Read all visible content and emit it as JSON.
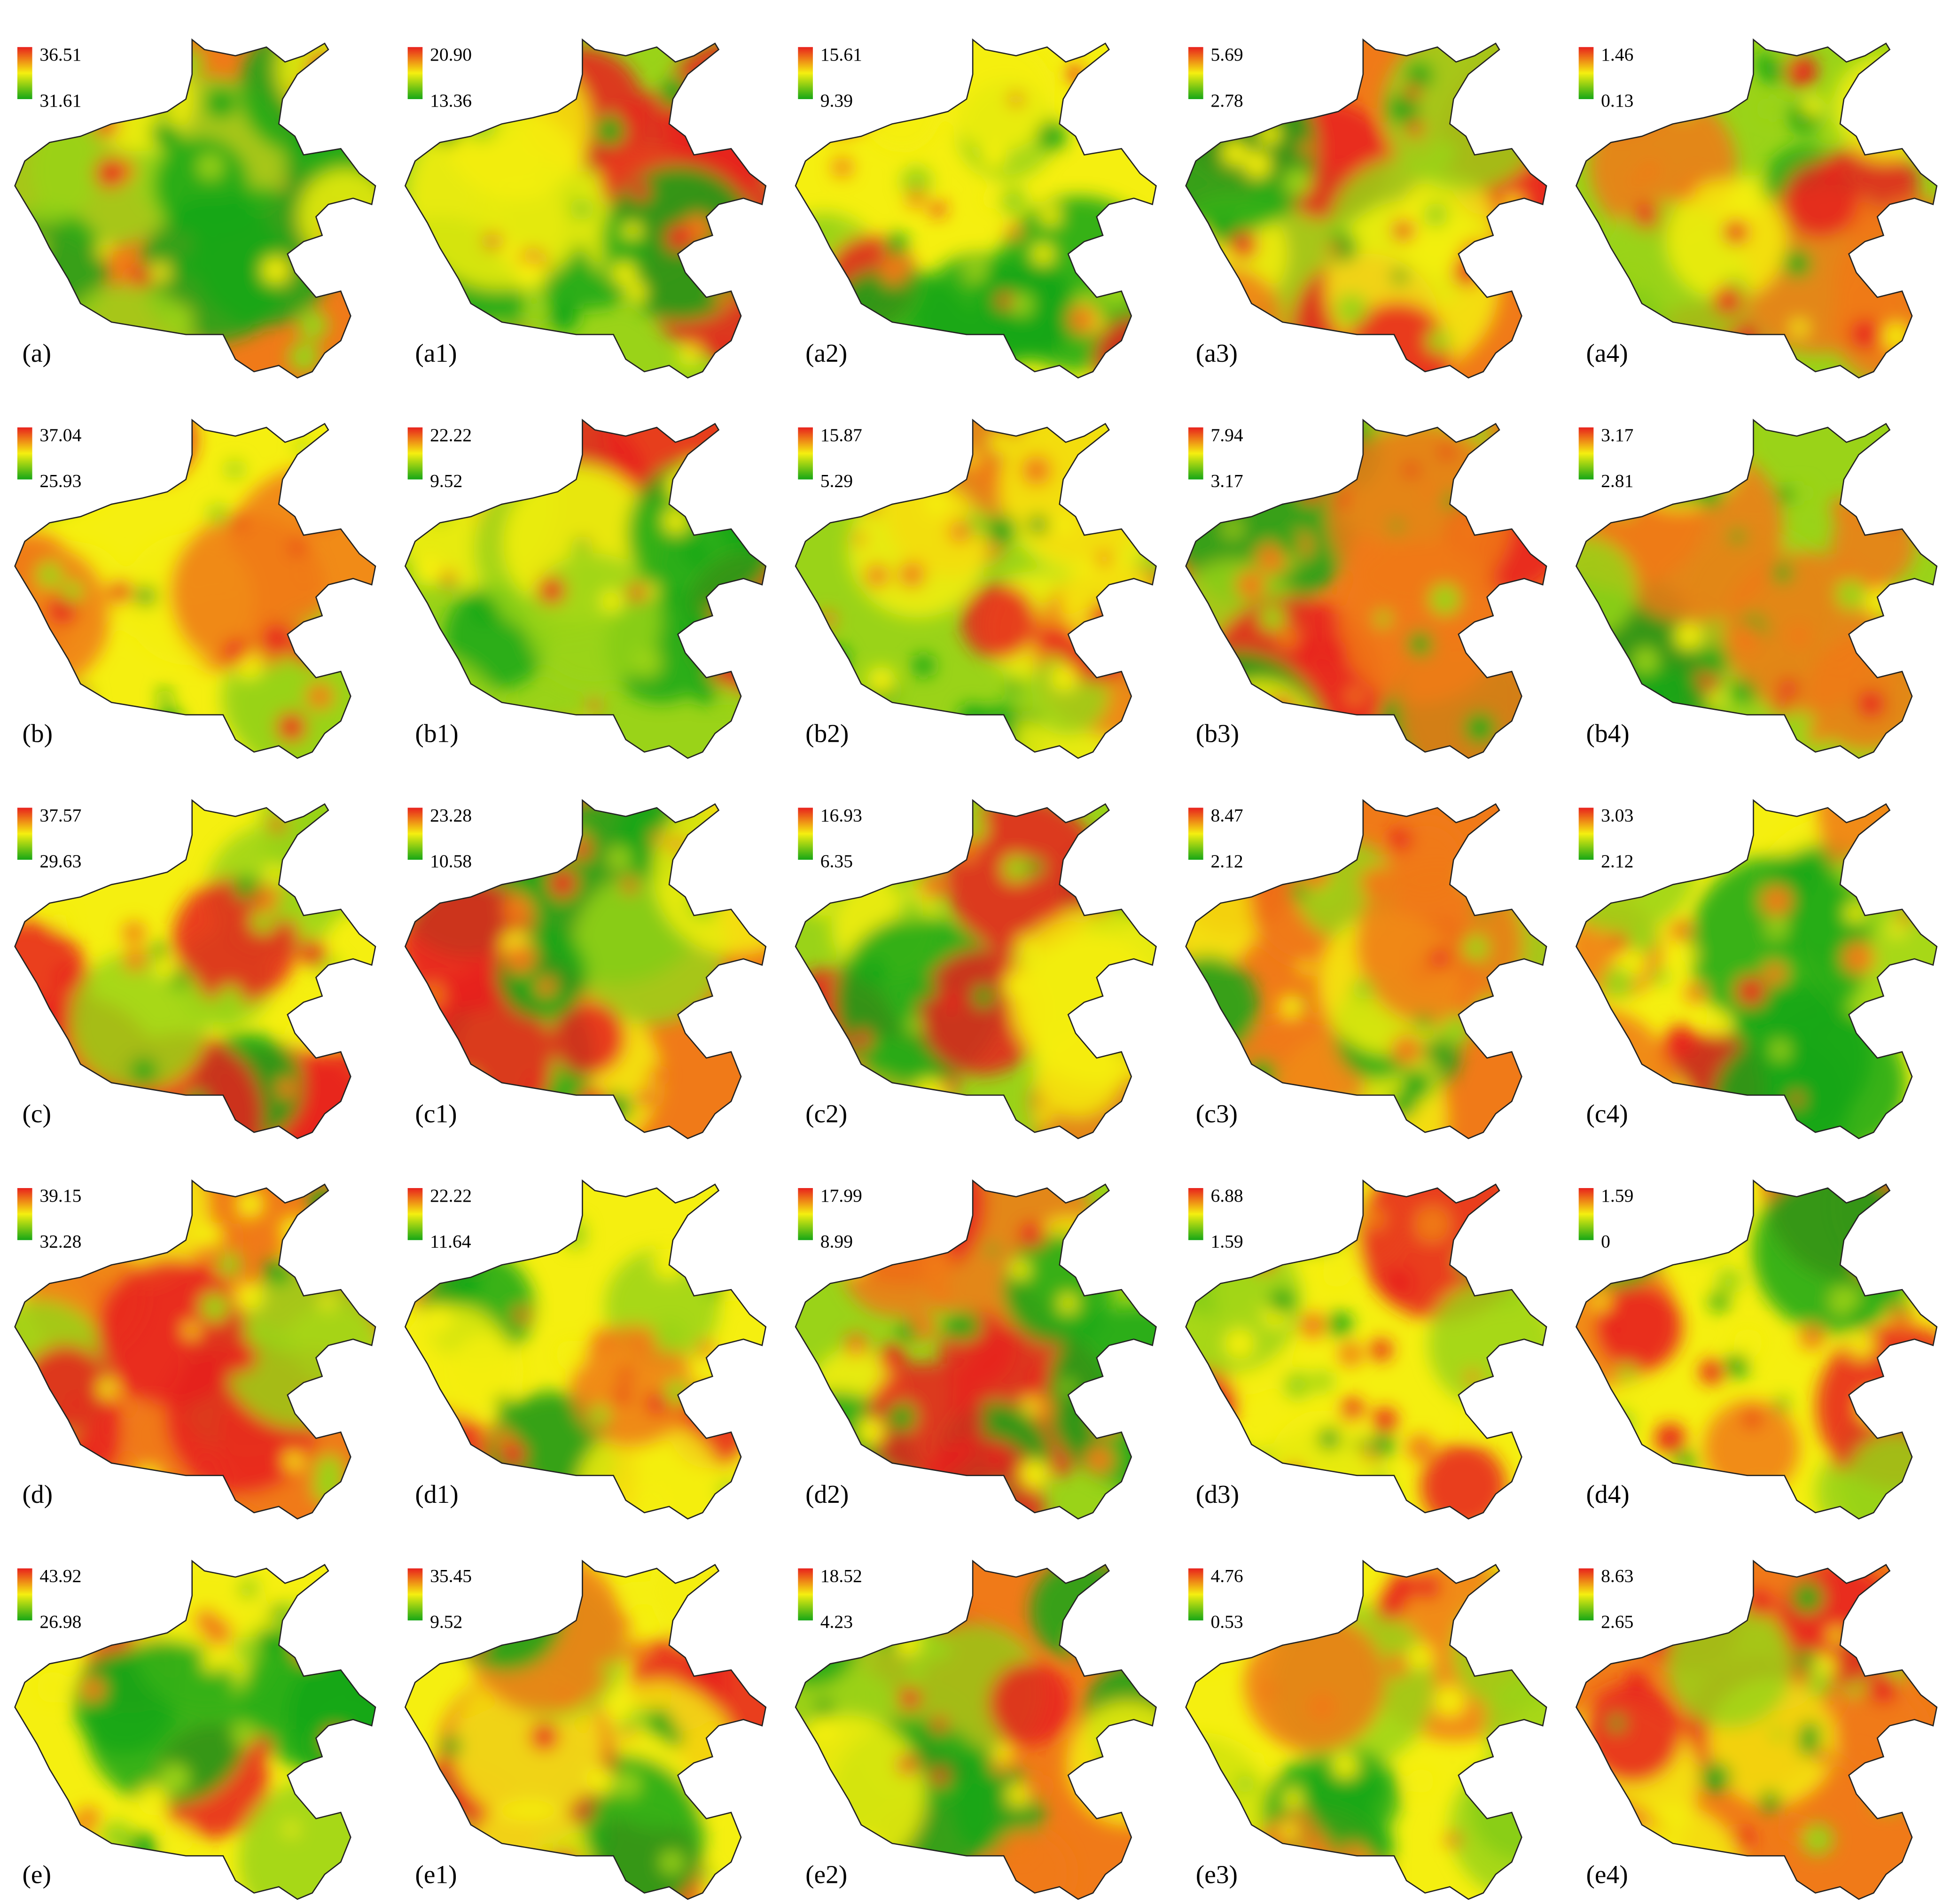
{
  "panels": [
    {
      "label": "(a)",
      "legend_max": "36.51",
      "legend_min": "31.61"
    },
    {
      "label": "(a1)",
      "legend_max": "20.90",
      "legend_min": "13.36"
    },
    {
      "label": "(a2)",
      "legend_max": "15.61",
      "legend_min": "9.39"
    },
    {
      "label": "(a3)",
      "legend_max": "5.69",
      "legend_min": "2.78"
    },
    {
      "label": "(a4)",
      "legend_max": "1.46",
      "legend_min": "0.13"
    },
    {
      "label": "(b)",
      "legend_max": "37.04",
      "legend_min": "25.93"
    },
    {
      "label": "(b1)",
      "legend_max": "22.22",
      "legend_min": "9.52"
    },
    {
      "label": "(b2)",
      "legend_max": "15.87",
      "legend_min": "5.29"
    },
    {
      "label": "(b3)",
      "legend_max": "7.94",
      "legend_min": "3.17"
    },
    {
      "label": "(b4)",
      "legend_max": "3.17",
      "legend_min": "2.81"
    },
    {
      "label": "(c)",
      "legend_max": "37.57",
      "legend_min": "29.63"
    },
    {
      "label": "(c1)",
      "legend_max": "23.28",
      "legend_min": "10.58"
    },
    {
      "label": "(c2)",
      "legend_max": "16.93",
      "legend_min": "6.35"
    },
    {
      "label": "(c3)",
      "legend_max": "8.47",
      "legend_min": "2.12"
    },
    {
      "label": "(c4)",
      "legend_max": "3.03",
      "legend_min": "2.12"
    },
    {
      "label": "(d)",
      "legend_max": "39.15",
      "legend_min": "32.28"
    },
    {
      "label": "(d1)",
      "legend_max": "22.22",
      "legend_min": "11.64"
    },
    {
      "label": "(d2)",
      "legend_max": "17.99",
      "legend_min": "8.99"
    },
    {
      "label": "(d3)",
      "legend_max": "6.88",
      "legend_min": "1.59"
    },
    {
      "label": "(d4)",
      "legend_max": "1.59",
      "legend_min": "0"
    },
    {
      "label": "(e)",
      "legend_max": "43.92",
      "legend_min": "26.98"
    },
    {
      "label": "(e1)",
      "legend_max": "35.45",
      "legend_min": "9.52"
    },
    {
      "label": "(e2)",
      "legend_max": "18.52",
      "legend_min": "4.23"
    },
    {
      "label": "(e3)",
      "legend_max": "4.76",
      "legend_min": "0.53"
    },
    {
      "label": "(e4)",
      "legend_max": "8.63",
      "legend_min": "2.65"
    }
  ]
}
